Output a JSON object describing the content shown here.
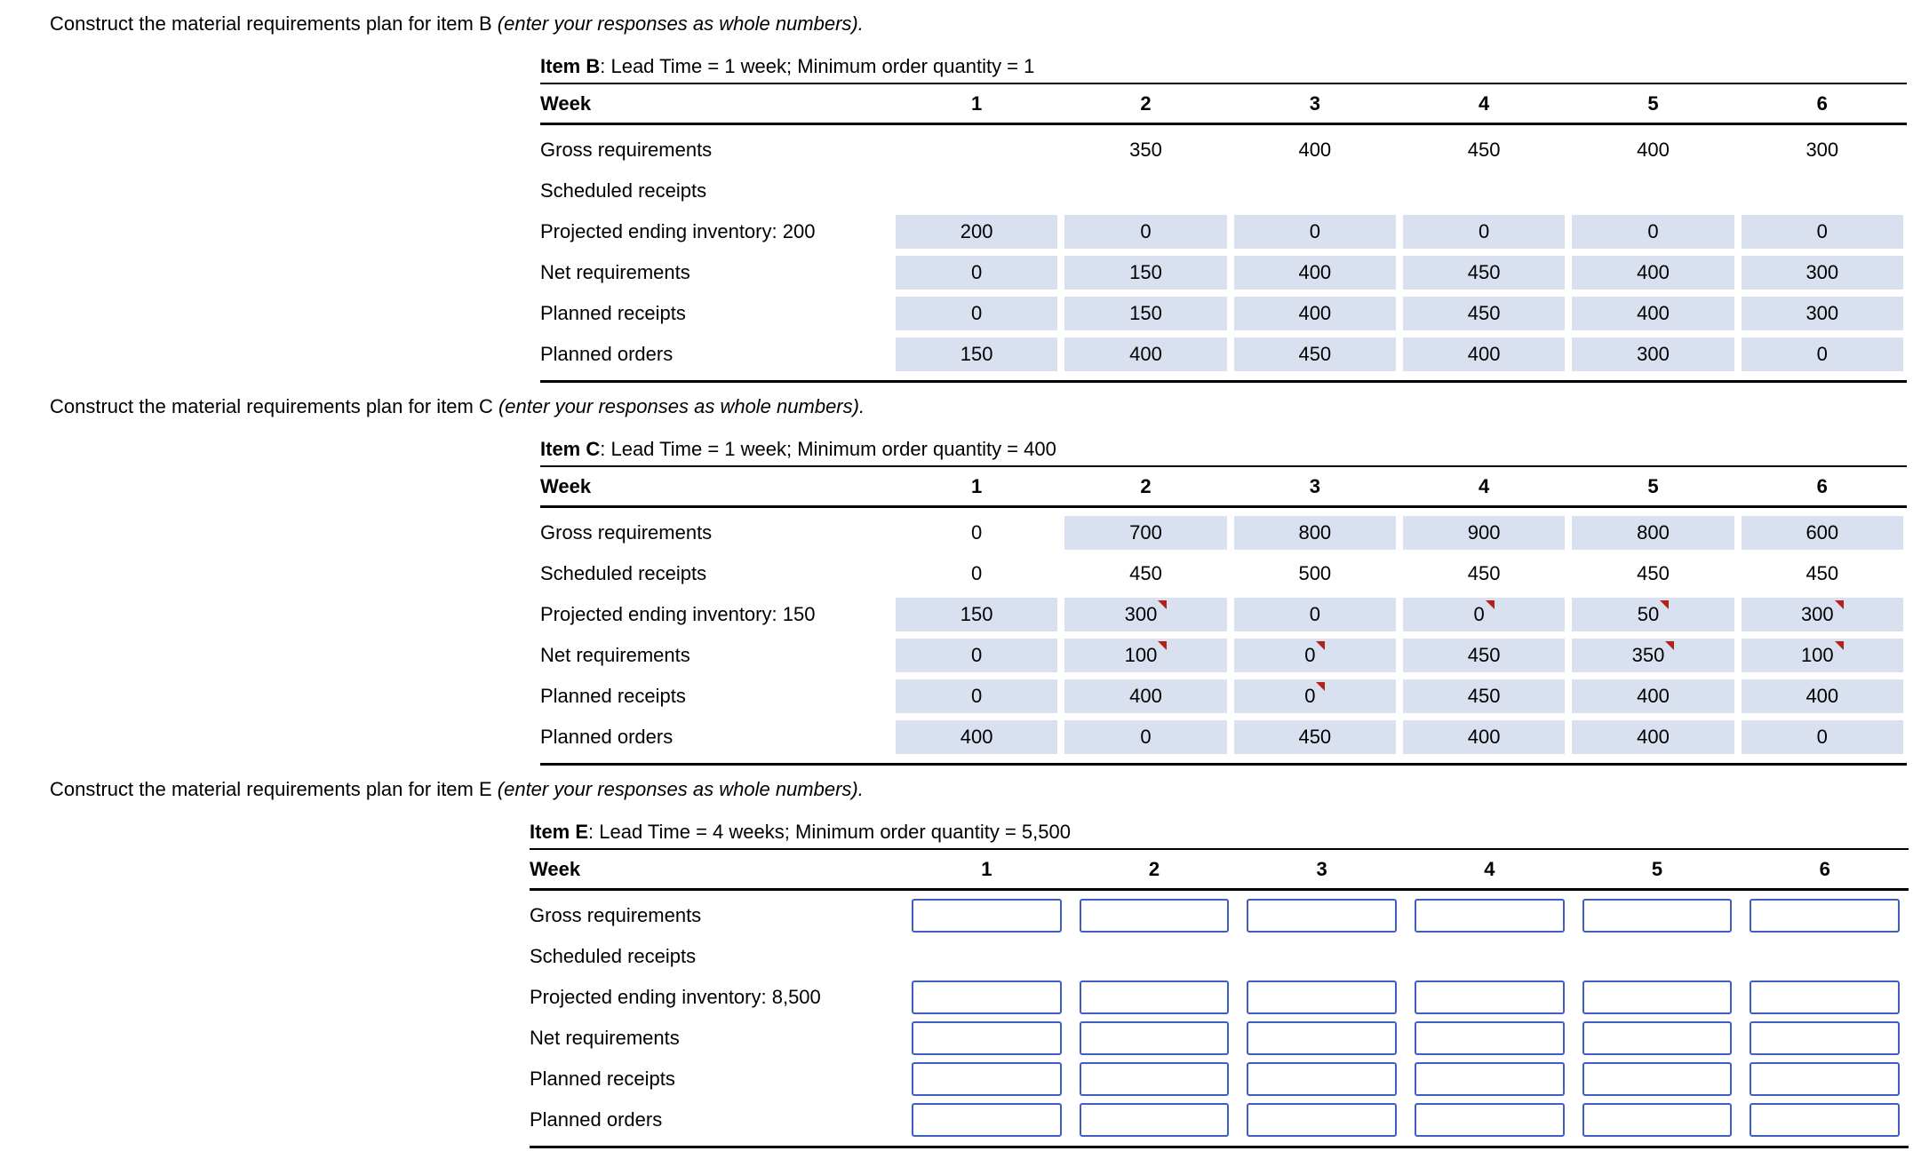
{
  "sections": [
    {
      "prompt_main": "Construct the material requirements plan for item B ",
      "prompt_italic": "(enter your responses as whole numbers).",
      "item_label": "Item B",
      "item_info": ": Lead Time = 1 week; Minimum order quantity = 1",
      "week_label": "Week",
      "weeks": [
        "1",
        "2",
        "3",
        "4",
        "5",
        "6"
      ],
      "rows": [
        {
          "label": "Gross requirements",
          "cells": [
            {
              "t": "plain",
              "v": ""
            },
            {
              "t": "plain",
              "v": "350"
            },
            {
              "t": "plain",
              "v": "400"
            },
            {
              "t": "plain",
              "v": "450"
            },
            {
              "t": "plain",
              "v": "400"
            },
            {
              "t": "plain",
              "v": "300"
            }
          ]
        },
        {
          "label": "Scheduled receipts",
          "cells": [
            {
              "t": "none"
            },
            {
              "t": "none"
            },
            {
              "t": "none"
            },
            {
              "t": "none"
            },
            {
              "t": "none"
            },
            {
              "t": "none"
            }
          ]
        },
        {
          "label": "Projected ending inventory: 200",
          "cells": [
            {
              "t": "shaded",
              "v": "200"
            },
            {
              "t": "shaded",
              "v": "0"
            },
            {
              "t": "shaded",
              "v": "0"
            },
            {
              "t": "shaded",
              "v": "0"
            },
            {
              "t": "shaded",
              "v": "0"
            },
            {
              "t": "shaded",
              "v": "0"
            }
          ]
        },
        {
          "label": "Net requirements",
          "cells": [
            {
              "t": "shaded",
              "v": "0"
            },
            {
              "t": "shaded",
              "v": "150"
            },
            {
              "t": "shaded",
              "v": "400"
            },
            {
              "t": "shaded",
              "v": "450"
            },
            {
              "t": "shaded",
              "v": "400"
            },
            {
              "t": "shaded",
              "v": "300"
            }
          ]
        },
        {
          "label": "Planned receipts",
          "cells": [
            {
              "t": "shaded",
              "v": "0"
            },
            {
              "t": "shaded",
              "v": "150"
            },
            {
              "t": "shaded",
              "v": "400"
            },
            {
              "t": "shaded",
              "v": "450"
            },
            {
              "t": "shaded",
              "v": "400"
            },
            {
              "t": "shaded",
              "v": "300"
            }
          ]
        },
        {
          "label": "Planned orders",
          "cells": [
            {
              "t": "shaded",
              "v": "150"
            },
            {
              "t": "shaded",
              "v": "400"
            },
            {
              "t": "shaded",
              "v": "450"
            },
            {
              "t": "shaded",
              "v": "400"
            },
            {
              "t": "shaded",
              "v": "300"
            },
            {
              "t": "shaded",
              "v": "0"
            }
          ]
        }
      ]
    },
    {
      "prompt_main": "Construct the material requirements plan for item C ",
      "prompt_italic": "(enter your responses as whole numbers).",
      "item_label": "Item C",
      "item_info": ": Lead Time = 1 week; Minimum order quantity = 400",
      "week_label": "Week",
      "weeks": [
        "1",
        "2",
        "3",
        "4",
        "5",
        "6"
      ],
      "rows": [
        {
          "label": "Gross requirements",
          "cells": [
            {
              "t": "plain",
              "v": "0"
            },
            {
              "t": "shaded",
              "v": "700"
            },
            {
              "t": "shaded",
              "v": "800"
            },
            {
              "t": "shaded",
              "v": "900"
            },
            {
              "t": "shaded",
              "v": "800"
            },
            {
              "t": "shaded",
              "v": "600"
            }
          ]
        },
        {
          "label": "Scheduled receipts",
          "cells": [
            {
              "t": "plain",
              "v": "0"
            },
            {
              "t": "plain",
              "v": "450"
            },
            {
              "t": "plain",
              "v": "500"
            },
            {
              "t": "plain",
              "v": "450"
            },
            {
              "t": "plain",
              "v": "450"
            },
            {
              "t": "plain",
              "v": "450"
            }
          ]
        },
        {
          "label": "Projected ending inventory: 150",
          "cells": [
            {
              "t": "shaded",
              "v": "150"
            },
            {
              "t": "shaded",
              "v": "300",
              "m": true
            },
            {
              "t": "shaded",
              "v": "0"
            },
            {
              "t": "shaded",
              "v": "0",
              "m": true
            },
            {
              "t": "shaded",
              "v": "50",
              "m": true
            },
            {
              "t": "shaded",
              "v": "300",
              "m": true
            }
          ]
        },
        {
          "label": "Net requirements",
          "cells": [
            {
              "t": "shaded",
              "v": "0"
            },
            {
              "t": "shaded",
              "v": "100",
              "m": true
            },
            {
              "t": "shaded",
              "v": "0",
              "m": true
            },
            {
              "t": "shaded",
              "v": "450"
            },
            {
              "t": "shaded",
              "v": "350",
              "m": true
            },
            {
              "t": "shaded",
              "v": "100",
              "m": true
            }
          ]
        },
        {
          "label": "Planned receipts",
          "cells": [
            {
              "t": "shaded",
              "v": "0"
            },
            {
              "t": "shaded",
              "v": "400"
            },
            {
              "t": "shaded",
              "v": "0",
              "m": true
            },
            {
              "t": "shaded",
              "v": "450"
            },
            {
              "t": "shaded",
              "v": "400"
            },
            {
              "t": "shaded",
              "v": "400"
            }
          ]
        },
        {
          "label": "Planned orders",
          "cells": [
            {
              "t": "shaded",
              "v": "400"
            },
            {
              "t": "shaded",
              "v": "0"
            },
            {
              "t": "shaded",
              "v": "450"
            },
            {
              "t": "shaded",
              "v": "400"
            },
            {
              "t": "shaded",
              "v": "400"
            },
            {
              "t": "shaded",
              "v": "0"
            }
          ]
        }
      ]
    },
    {
      "prompt_main": "Construct the material requirements plan for item E ",
      "prompt_italic": "(enter your responses as whole numbers).",
      "item_label": "Item E",
      "item_info": ": Lead Time = 4 weeks; Minimum order quantity = 5,500",
      "week_label": "Week",
      "weeks": [
        "1",
        "2",
        "3",
        "4",
        "5",
        "6"
      ],
      "rows": [
        {
          "label": "Gross requirements",
          "cells": [
            {
              "t": "input"
            },
            {
              "t": "input"
            },
            {
              "t": "input"
            },
            {
              "t": "input"
            },
            {
              "t": "input"
            },
            {
              "t": "input"
            }
          ]
        },
        {
          "label": "Scheduled receipts",
          "cells": [
            {
              "t": "none"
            },
            {
              "t": "none"
            },
            {
              "t": "none"
            },
            {
              "t": "none"
            },
            {
              "t": "none"
            },
            {
              "t": "none"
            }
          ]
        },
        {
          "label": "Projected ending inventory: 8,500",
          "cells": [
            {
              "t": "input"
            },
            {
              "t": "input"
            },
            {
              "t": "input"
            },
            {
              "t": "input"
            },
            {
              "t": "input"
            },
            {
              "t": "input"
            }
          ]
        },
        {
          "label": "Net requirements",
          "cells": [
            {
              "t": "input"
            },
            {
              "t": "input"
            },
            {
              "t": "input"
            },
            {
              "t": "input"
            },
            {
              "t": "input"
            },
            {
              "t": "input"
            }
          ]
        },
        {
          "label": "Planned receipts",
          "cells": [
            {
              "t": "input"
            },
            {
              "t": "input"
            },
            {
              "t": "input"
            },
            {
              "t": "input"
            },
            {
              "t": "input"
            },
            {
              "t": "input"
            }
          ]
        },
        {
          "label": "Planned orders",
          "cells": [
            {
              "t": "input"
            },
            {
              "t": "input"
            },
            {
              "t": "input"
            },
            {
              "t": "input"
            },
            {
              "t": "input"
            },
            {
              "t": "input"
            }
          ]
        }
      ]
    }
  ]
}
